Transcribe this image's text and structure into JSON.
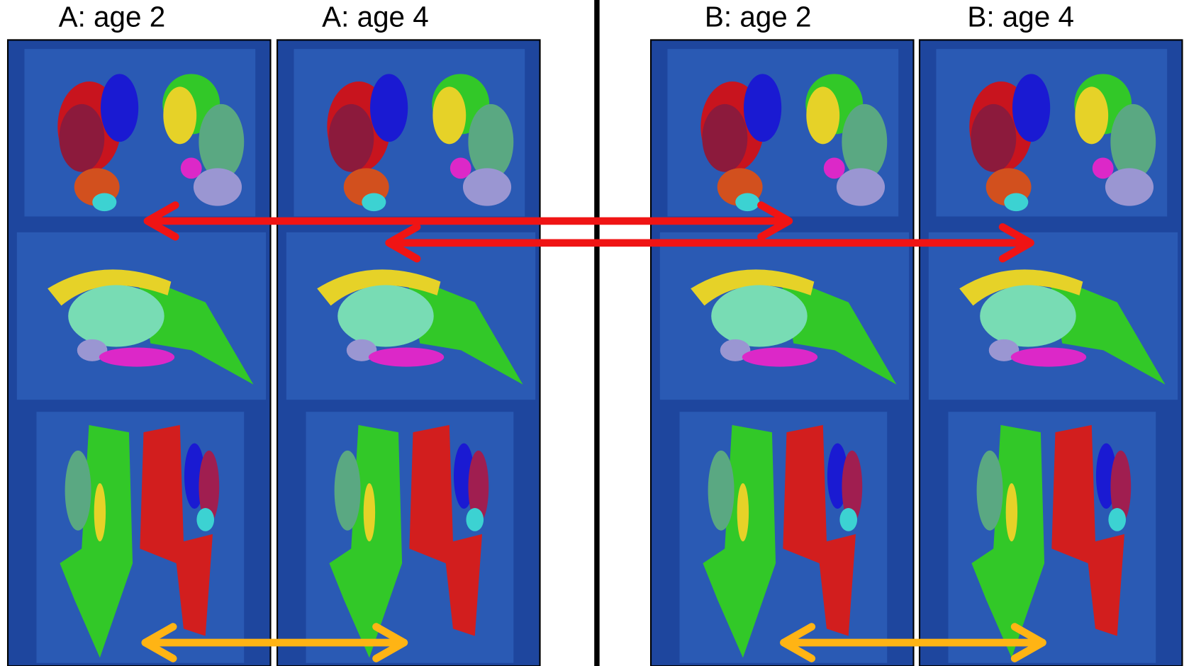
{
  "panels": [
    {
      "label": "A: age 2"
    },
    {
      "label": "A: age 4"
    },
    {
      "label": "B: age 2"
    },
    {
      "label": "B: age 4"
    }
  ]
}
